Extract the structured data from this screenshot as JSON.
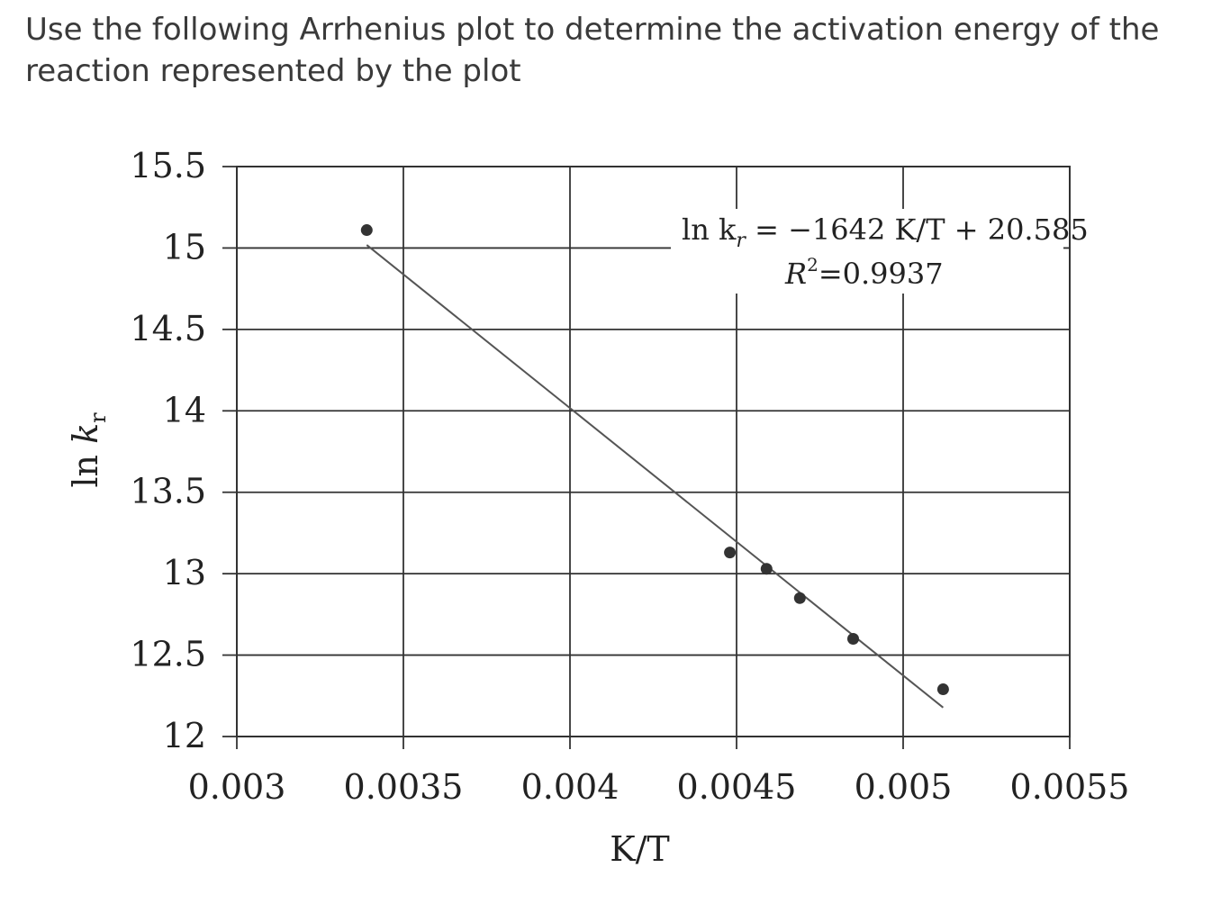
{
  "question": {
    "line1": "Use the following Arrhenius plot to determine the activation energy of the",
    "line2": "reaction represented by the plot"
  },
  "chart_data": {
    "type": "scatter",
    "xlabel": "K/T",
    "ylabel": "ln k_r",
    "xlim": [
      0.003,
      0.0055
    ],
    "ylim": [
      12,
      15.5
    ],
    "x_ticks": [
      "0.003",
      "0.0035",
      "0.004",
      "0.0045",
      "0.005",
      "0.0055"
    ],
    "y_ticks": [
      "15.5",
      "15",
      "14.5",
      "14",
      "13.5",
      "13",
      "12.5",
      "12"
    ],
    "grid": true,
    "points": [
      {
        "x": 0.00339,
        "y": 15.11
      },
      {
        "x": 0.00448,
        "y": 13.13
      },
      {
        "x": 0.00459,
        "y": 13.03
      },
      {
        "x": 0.00469,
        "y": 12.85
      },
      {
        "x": 0.00485,
        "y": 12.6
      },
      {
        "x": 0.00512,
        "y": 12.29
      }
    ],
    "trendline": {
      "slope": -1642,
      "intercept": 20.585,
      "x_start": 0.00339,
      "x_end": 0.00512
    },
    "annotation": {
      "equation_prefix": "ln k",
      "equation_subscript": "r",
      "equation_rest": " = −1642 K/T + 20.585",
      "r2_label": "R",
      "r2_superscript": "2",
      "r2_value": "=0.9937"
    }
  }
}
